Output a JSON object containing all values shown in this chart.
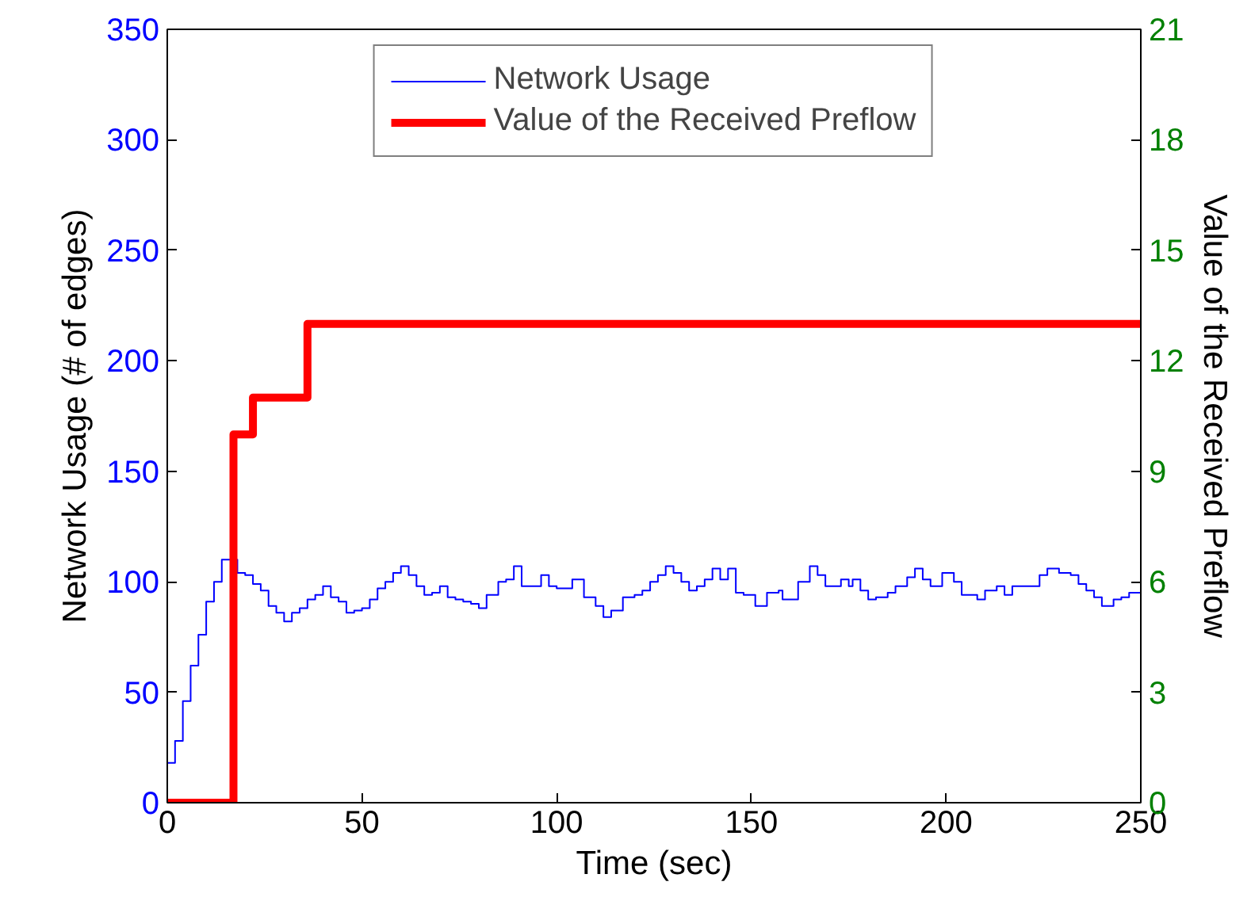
{
  "chart_data": {
    "type": "step",
    "xlabel": "Time (sec)",
    "ylabel": "Network Usage (# of edges)",
    "y2label": "Value of the Received Preflow",
    "xlim": [
      0,
      250
    ],
    "xticks": [
      0,
      50,
      100,
      150,
      200,
      250
    ],
    "ylim": [
      0,
      350
    ],
    "yticks": [
      0,
      50,
      100,
      150,
      200,
      250,
      300,
      350
    ],
    "y2lim": [
      0,
      21
    ],
    "y2ticks": [
      0,
      3,
      6,
      9,
      12,
      15,
      18,
      21
    ],
    "grid": false,
    "legend": "top",
    "series": [
      {
        "name": "Network Usage",
        "color": "#0000ff",
        "x": [
          0,
          2,
          4,
          6,
          8,
          10,
          12,
          14,
          16,
          18,
          20,
          22,
          24,
          26,
          28,
          30,
          32,
          34,
          36,
          38,
          40,
          42,
          44,
          46,
          48,
          50,
          52,
          54,
          56,
          58,
          60,
          62,
          64,
          66,
          68,
          70,
          72,
          74,
          76,
          78,
          80,
          82,
          85,
          87,
          89,
          91,
          94,
          96,
          98,
          100,
          102,
          104,
          107,
          110,
          112,
          114,
          117,
          120,
          122,
          124,
          126,
          128,
          130,
          132,
          134,
          136,
          138,
          140,
          142,
          144,
          146,
          148,
          151,
          154,
          157,
          158,
          162,
          165,
          167,
          169,
          173,
          175,
          176,
          178,
          180,
          182,
          185,
          187,
          190,
          192,
          194,
          196,
          199,
          202,
          204,
          208,
          210,
          213,
          215,
          217,
          220,
          224,
          226,
          229,
          232,
          234,
          236,
          238,
          240,
          243,
          245,
          247,
          250
        ],
        "values": [
          18,
          28,
          46,
          62,
          76,
          91,
          100,
          110,
          110,
          104,
          103,
          99,
          96,
          89,
          86,
          82,
          86,
          88,
          92,
          94,
          98,
          93,
          91,
          86,
          87,
          88,
          92,
          97,
          100,
          104,
          107,
          103,
          98,
          94,
          95,
          98,
          93,
          92,
          91,
          90,
          88,
          94,
          100,
          101,
          107,
          98,
          98,
          103,
          98,
          97,
          97,
          101,
          93,
          89,
          84,
          87,
          93,
          94,
          96,
          100,
          103,
          107,
          104,
          100,
          96,
          98,
          101,
          106,
          101,
          106,
          95,
          94,
          89,
          95,
          96,
          92,
          100,
          107,
          103,
          98,
          101,
          98,
          101,
          96,
          92,
          93,
          95,
          98,
          102,
          106,
          101,
          98,
          104,
          100,
          94,
          92,
          96,
          98,
          94,
          98,
          98,
          103,
          106,
          104,
          103,
          99,
          96,
          93,
          89,
          92,
          93,
          95,
          96
        ]
      },
      {
        "name": "Value of the Received Preflow",
        "color": "#ff0000",
        "axis": "y2",
        "x": [
          0,
          17,
          22,
          36,
          250
        ],
        "values": [
          0,
          10,
          11,
          13,
          13
        ]
      }
    ]
  }
}
